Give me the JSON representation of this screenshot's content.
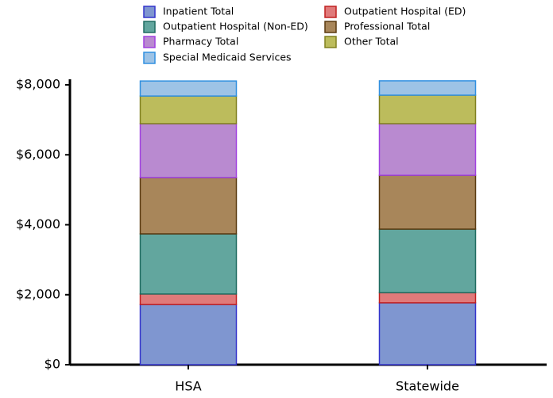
{
  "chart_data": {
    "type": "stacked_bar",
    "categories": [
      "HSA",
      "Statewide"
    ],
    "series": [
      {
        "name": "Inpatient Total",
        "color": "#7f96d0",
        "edge_color": "#3333cc",
        "values": [
          1720,
          1770
        ]
      },
      {
        "name": "Outpatient Hospital (ED)",
        "color": "#e07a7a",
        "edge_color": "#c02020",
        "values": [
          300,
          290
        ]
      },
      {
        "name": "Outpatient Hospital (Non-ED)",
        "color": "#62a69e",
        "edge_color": "#1f6b60",
        "values": [
          1720,
          1815
        ]
      },
      {
        "name": "Professional Total",
        "color": "#a8865a",
        "edge_color": "#5a3a10",
        "values": [
          1610,
          1540
        ]
      },
      {
        "name": "Pharmacy Total",
        "color": "#b98ad0",
        "edge_color": "#a040e0",
        "values": [
          1540,
          1475
        ]
      },
      {
        "name": "Other Total",
        "color": "#bcbc5c",
        "edge_color": "#808020",
        "values": [
          790,
          815
        ]
      },
      {
        "name": "Special Medicaid Services",
        "color": "#9dc3e6",
        "edge_color": "#3090e0",
        "values": [
          430,
          410
        ]
      }
    ],
    "ylim": [
      0,
      8000
    ],
    "yticks": [
      {
        "value": 0,
        "label": "$0"
      },
      {
        "value": 2000,
        "label": "$2,000"
      },
      {
        "value": 4000,
        "label": "$4,000"
      },
      {
        "value": 6000,
        "label": "$6,000"
      },
      {
        "value": 8000,
        "label": "$8,000"
      }
    ],
    "grid": false
  }
}
